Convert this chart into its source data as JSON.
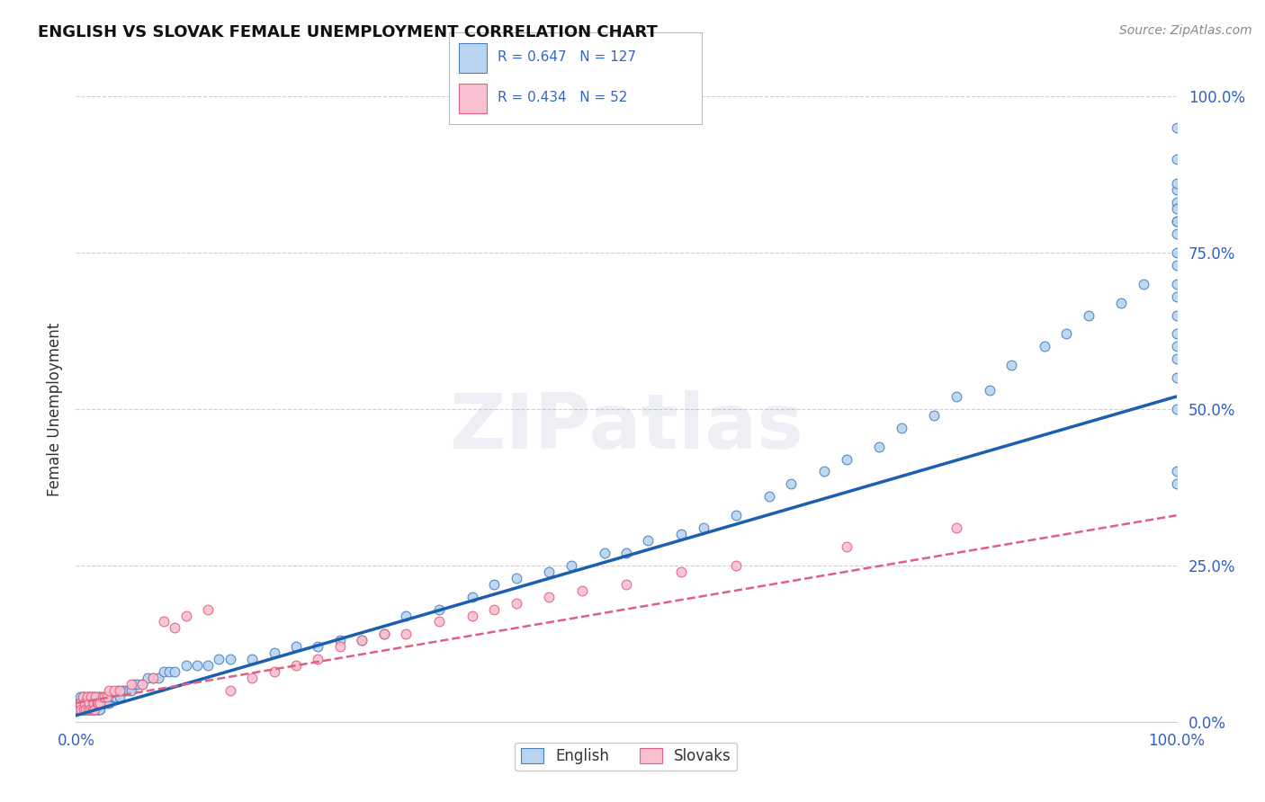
{
  "title": "ENGLISH VS SLOVAK FEMALE UNEMPLOYMENT CORRELATION CHART",
  "source": "Source: ZipAtlas.com",
  "ylabel": "Female Unemployment",
  "english_R": 0.647,
  "english_N": 127,
  "slovak_R": 0.434,
  "slovak_N": 52,
  "english_dot_color": "#b8d4f0",
  "english_dot_edge": "#4a80c0",
  "english_line_color": "#1a5fb0",
  "slovak_dot_color": "#f8c0d0",
  "slovak_dot_edge": "#e06080",
  "slovak_line_color": "#e06080",
  "background_color": "#ffffff",
  "grid_color": "#d0d0d0",
  "watermark": "ZIPatlas",
  "title_color": "#111111",
  "ylabel_color": "#333333",
  "tick_label_color": "#3060c0",
  "legend_val_color": "#3366cc",
  "source_color": "#888888",
  "english_x": [
    0.002,
    0.003,
    0.004,
    0.004,
    0.005,
    0.005,
    0.006,
    0.006,
    0.007,
    0.007,
    0.008,
    0.008,
    0.009,
    0.009,
    0.01,
    0.01,
    0.01,
    0.011,
    0.011,
    0.012,
    0.012,
    0.013,
    0.013,
    0.014,
    0.014,
    0.015,
    0.015,
    0.016,
    0.016,
    0.017,
    0.017,
    0.018,
    0.018,
    0.019,
    0.019,
    0.02,
    0.02,
    0.021,
    0.021,
    0.022,
    0.022,
    0.023,
    0.024,
    0.025,
    0.026,
    0.027,
    0.028,
    0.03,
    0.032,
    0.034,
    0.036,
    0.038,
    0.04,
    0.042,
    0.045,
    0.048,
    0.05,
    0.053,
    0.056,
    0.06,
    0.065,
    0.07,
    0.075,
    0.08,
    0.085,
    0.09,
    0.1,
    0.11,
    0.12,
    0.13,
    0.14,
    0.16,
    0.18,
    0.2,
    0.22,
    0.24,
    0.26,
    0.28,
    0.3,
    0.33,
    0.36,
    0.38,
    0.4,
    0.43,
    0.45,
    0.48,
    0.5,
    0.52,
    0.55,
    0.57,
    0.6,
    0.63,
    0.65,
    0.68,
    0.7,
    0.73,
    0.75,
    0.78,
    0.8,
    0.83,
    0.85,
    0.88,
    0.9,
    0.92,
    0.95,
    0.97,
    1.0,
    1.0,
    1.0,
    1.0,
    1.0,
    1.0,
    1.0,
    1.0,
    1.0,
    1.0,
    1.0,
    1.0,
    1.0,
    1.0,
    1.0,
    1.0,
    1.0,
    1.0,
    1.0,
    1.0,
    1.0
  ],
  "english_y": [
    0.02,
    0.03,
    0.02,
    0.04,
    0.02,
    0.03,
    0.02,
    0.04,
    0.02,
    0.03,
    0.02,
    0.04,
    0.02,
    0.03,
    0.02,
    0.03,
    0.04,
    0.02,
    0.03,
    0.02,
    0.04,
    0.02,
    0.03,
    0.02,
    0.04,
    0.02,
    0.03,
    0.02,
    0.04,
    0.02,
    0.03,
    0.02,
    0.04,
    0.02,
    0.03,
    0.02,
    0.04,
    0.02,
    0.03,
    0.02,
    0.04,
    0.03,
    0.03,
    0.03,
    0.03,
    0.04,
    0.03,
    0.03,
    0.04,
    0.04,
    0.04,
    0.05,
    0.04,
    0.05,
    0.05,
    0.05,
    0.05,
    0.06,
    0.06,
    0.06,
    0.07,
    0.07,
    0.07,
    0.08,
    0.08,
    0.08,
    0.09,
    0.09,
    0.09,
    0.1,
    0.1,
    0.1,
    0.11,
    0.12,
    0.12,
    0.13,
    0.13,
    0.14,
    0.17,
    0.18,
    0.2,
    0.22,
    0.23,
    0.24,
    0.25,
    0.27,
    0.27,
    0.29,
    0.3,
    0.31,
    0.33,
    0.36,
    0.38,
    0.4,
    0.42,
    0.44,
    0.47,
    0.49,
    0.52,
    0.53,
    0.57,
    0.6,
    0.62,
    0.65,
    0.67,
    0.7,
    0.38,
    0.4,
    0.5,
    0.55,
    0.58,
    0.6,
    0.62,
    0.65,
    0.68,
    0.7,
    0.73,
    0.75,
    0.78,
    0.8,
    0.83,
    0.85,
    0.8,
    0.82,
    0.86,
    0.9,
    0.95
  ],
  "slovak_x": [
    0.003,
    0.004,
    0.005,
    0.006,
    0.007,
    0.008,
    0.009,
    0.01,
    0.011,
    0.012,
    0.013,
    0.014,
    0.015,
    0.016,
    0.017,
    0.018,
    0.019,
    0.02,
    0.022,
    0.024,
    0.026,
    0.028,
    0.03,
    0.035,
    0.04,
    0.05,
    0.06,
    0.07,
    0.08,
    0.09,
    0.1,
    0.12,
    0.14,
    0.16,
    0.18,
    0.2,
    0.22,
    0.24,
    0.26,
    0.28,
    0.3,
    0.33,
    0.36,
    0.38,
    0.4,
    0.43,
    0.46,
    0.5,
    0.55,
    0.6,
    0.7,
    0.8
  ],
  "slovak_y": [
    0.02,
    0.03,
    0.02,
    0.04,
    0.02,
    0.03,
    0.02,
    0.04,
    0.02,
    0.03,
    0.02,
    0.04,
    0.02,
    0.03,
    0.02,
    0.04,
    0.03,
    0.03,
    0.03,
    0.04,
    0.04,
    0.04,
    0.05,
    0.05,
    0.05,
    0.06,
    0.06,
    0.07,
    0.16,
    0.15,
    0.17,
    0.18,
    0.05,
    0.07,
    0.08,
    0.09,
    0.1,
    0.12,
    0.13,
    0.14,
    0.14,
    0.16,
    0.17,
    0.18,
    0.19,
    0.2,
    0.21,
    0.22,
    0.24,
    0.25,
    0.28,
    0.31
  ],
  "english_trend_x": [
    0.0,
    1.0
  ],
  "english_trend_y": [
    0.01,
    0.52
  ],
  "slovak_trend_x": [
    0.0,
    1.0
  ],
  "slovak_trend_y": [
    0.03,
    0.33
  ],
  "xlim": [
    0.0,
    1.0
  ],
  "ylim": [
    0.0,
    1.0
  ],
  "yticks": [
    0.0,
    0.25,
    0.5,
    0.75,
    1.0
  ],
  "ytick_labels": [
    "0.0%",
    "25.0%",
    "50.0%",
    "75.0%",
    "100.0%"
  ],
  "xtick_vals": [
    0.0,
    1.0
  ],
  "xtick_labels": [
    "0.0%",
    "100.0%"
  ]
}
